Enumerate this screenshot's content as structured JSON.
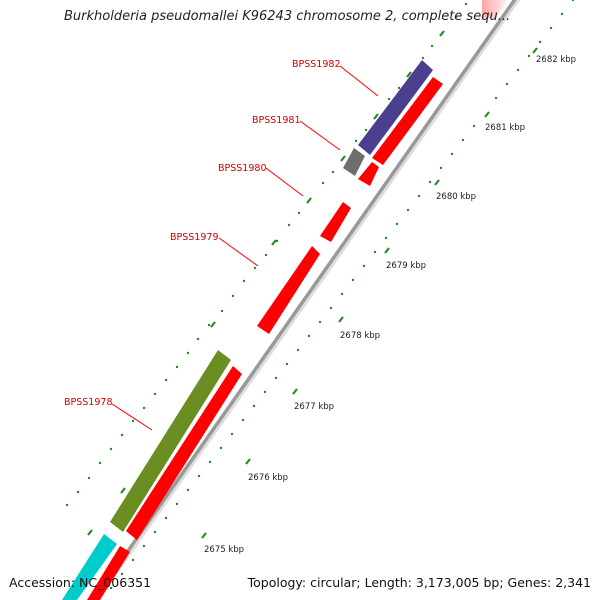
{
  "title": "Burkholderia pseudomallei K96243 chromosome 2, complete sequ...",
  "footer": {
    "accession": "Accession: NC_006351",
    "summary": "Topology: circular; Length: 3,173,005 bp; Genes: 2,341"
  },
  "scale": {
    "tick_labels": [
      "2675 kbp",
      "2676 kbp",
      "2677 kbp",
      "2678 kbp",
      "2679 kbp",
      "2680 kbp",
      "2681 kbp",
      "2682 kbp"
    ]
  },
  "genes": [
    {
      "name": "BPSS1978",
      "color": "#6b8e23"
    },
    {
      "name": "BPSS1979",
      "color": "#ff0000"
    },
    {
      "name": "BPSS1980",
      "color": "#ff0000"
    },
    {
      "name": "BPSS1981",
      "color": "#6e6e6e"
    },
    {
      "name": "BPSS1982",
      "color": "#4b3f8f"
    }
  ],
  "colors": {
    "cds_strand": "#ff0000",
    "unlabeled_gene": "#00cccc",
    "backbone": "#999999",
    "tick_marks": "#228b22",
    "label_lines": "#ff0000"
  }
}
